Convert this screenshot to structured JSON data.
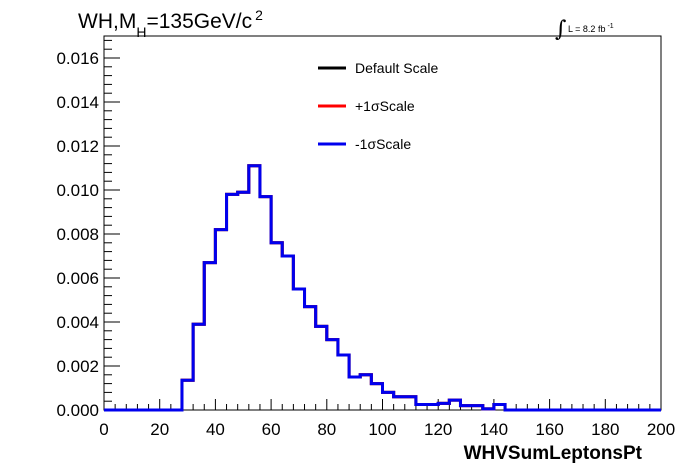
{
  "title": {
    "prefix": "WH,M",
    "subscript": "H",
    "main": "=135GeV/c",
    "superscript": "2"
  },
  "luminosity": {
    "integral_symbol": "∫",
    "text": "L = 8.2 fb",
    "superscript": "-1"
  },
  "chart_data": {
    "type": "line",
    "xlabel": "WHVSumLeptonsPt",
    "ylabel": "",
    "xlim": [
      0,
      200
    ],
    "ylim": [
      0,
      0.017
    ],
    "x_ticks": [
      0,
      20,
      40,
      60,
      80,
      100,
      120,
      140,
      160,
      180,
      200
    ],
    "x_tick_labels": [
      "0",
      "20",
      "40",
      "60",
      "80",
      "100",
      "120",
      "140",
      "160",
      "180",
      "200"
    ],
    "y_ticks": [
      0,
      0.002,
      0.004,
      0.006,
      0.008,
      0.01,
      0.012,
      0.014,
      0.016
    ],
    "y_tick_labels": [
      "0.000",
      "0.002",
      "0.004",
      "0.006",
      "0.008",
      "0.010",
      "0.012",
      "0.014",
      "0.016"
    ],
    "bin_edges": [
      0,
      4,
      8,
      12,
      16,
      20,
      24,
      28,
      32,
      36,
      40,
      44,
      48,
      52,
      56,
      60,
      64,
      68,
      72,
      76,
      80,
      84,
      88,
      92,
      96,
      100,
      104,
      108,
      112,
      116,
      120,
      124,
      128,
      132,
      136,
      140,
      144,
      148,
      152,
      156,
      160,
      164,
      168,
      172,
      176,
      180,
      184,
      188,
      192,
      196,
      200
    ],
    "series": [
      {
        "name": "Default Scale",
        "color": "#000000",
        "values": [
          0,
          0,
          0,
          0,
          0,
          0,
          0,
          0.00135,
          0.0039,
          0.0067,
          0.0082,
          0.0098,
          0.0099,
          0.0111,
          0.0097,
          0.0076,
          0.007,
          0.0055,
          0.0047,
          0.0038,
          0.0032,
          0.0025,
          0.0015,
          0.0016,
          0.0012,
          0.0008,
          0.0006,
          0.0006,
          0.00025,
          0.00025,
          0.0003,
          0.00045,
          0.0002,
          0.0002,
          5e-05,
          0.00025,
          0,
          0,
          0,
          0,
          0,
          0,
          0,
          0,
          0,
          0,
          0,
          0,
          0,
          0
        ]
      },
      {
        "name": "+1σScale",
        "color": "#ff0000",
        "values": [
          0,
          0,
          0,
          0,
          0,
          0,
          0,
          0.00135,
          0.0039,
          0.0067,
          0.0082,
          0.0098,
          0.0099,
          0.0111,
          0.0097,
          0.0076,
          0.007,
          0.0055,
          0.0047,
          0.0038,
          0.0032,
          0.0025,
          0.0015,
          0.0016,
          0.0012,
          0.0008,
          0.0006,
          0.0006,
          0.00025,
          0.00025,
          0.0003,
          0.00045,
          0.0002,
          0.0002,
          5e-05,
          0.00025,
          0,
          0,
          0,
          0,
          0,
          0,
          0,
          0,
          0,
          0,
          0,
          0,
          0,
          0
        ]
      },
      {
        "name": "-1σScale",
        "color": "#0000ee",
        "values": [
          0,
          0,
          0,
          0,
          0,
          0,
          0,
          0.00135,
          0.0039,
          0.0067,
          0.0082,
          0.0098,
          0.0099,
          0.0111,
          0.0097,
          0.0076,
          0.007,
          0.0055,
          0.0047,
          0.0038,
          0.0032,
          0.0025,
          0.0015,
          0.0016,
          0.0012,
          0.0008,
          0.0006,
          0.0006,
          0.00025,
          0.00025,
          0.0003,
          0.00045,
          0.0002,
          0.0002,
          5e-05,
          0.00025,
          0,
          0,
          0,
          0,
          0,
          0,
          0,
          0,
          0,
          0,
          0,
          0,
          0,
          0
        ]
      }
    ],
    "legend": {
      "position": "top-center",
      "entries": [
        "Default Scale",
        "+1σScale",
        "-1σScale"
      ],
      "colors": [
        "#000000",
        "#ff0000",
        "#0000ee"
      ]
    },
    "grid": false
  }
}
